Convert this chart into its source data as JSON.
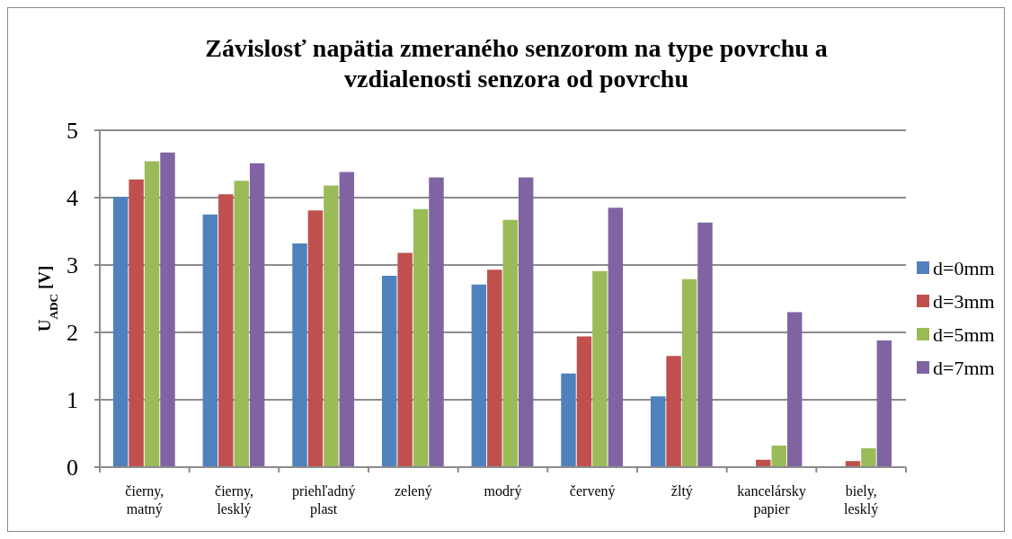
{
  "chart_data": {
    "type": "bar",
    "title": "Závislosť napätia zmeraného senzorom na type povrchu a vzdialenosti senzora od povrchu",
    "ylabel": "U$_{ADC}$ [V]",
    "categories": [
      "čierny, matný",
      "čierny, lesklý",
      "priehľadný plast",
      "zelený",
      "modrý",
      "červený",
      "žltý",
      "kancelársky papier",
      "biely, lesklý"
    ],
    "series": [
      {
        "name": "d=0mm",
        "color": "#4f81bd",
        "values": [
          4.01,
          3.75,
          3.32,
          2.84,
          2.71,
          1.39,
          1.05,
          0.01,
          0.01
        ]
      },
      {
        "name": "d=3mm",
        "color": "#c0504d",
        "values": [
          4.27,
          4.05,
          3.81,
          3.18,
          2.93,
          1.94,
          1.65,
          0.11,
          0.09
        ]
      },
      {
        "name": "d=5mm",
        "color": "#9bbb59",
        "values": [
          4.54,
          4.25,
          4.18,
          3.83,
          3.67,
          2.91,
          2.79,
          0.32,
          0.28
        ]
      },
      {
        "name": "d=7mm",
        "color": "#8064a2",
        "values": [
          4.67,
          4.51,
          4.38,
          4.3,
          4.3,
          3.85,
          3.63,
          2.3,
          1.88
        ]
      }
    ],
    "ylim": [
      0,
      5
    ],
    "yticks": [
      0,
      1,
      2,
      3,
      4,
      5
    ],
    "grid": "y",
    "legend": "right"
  }
}
